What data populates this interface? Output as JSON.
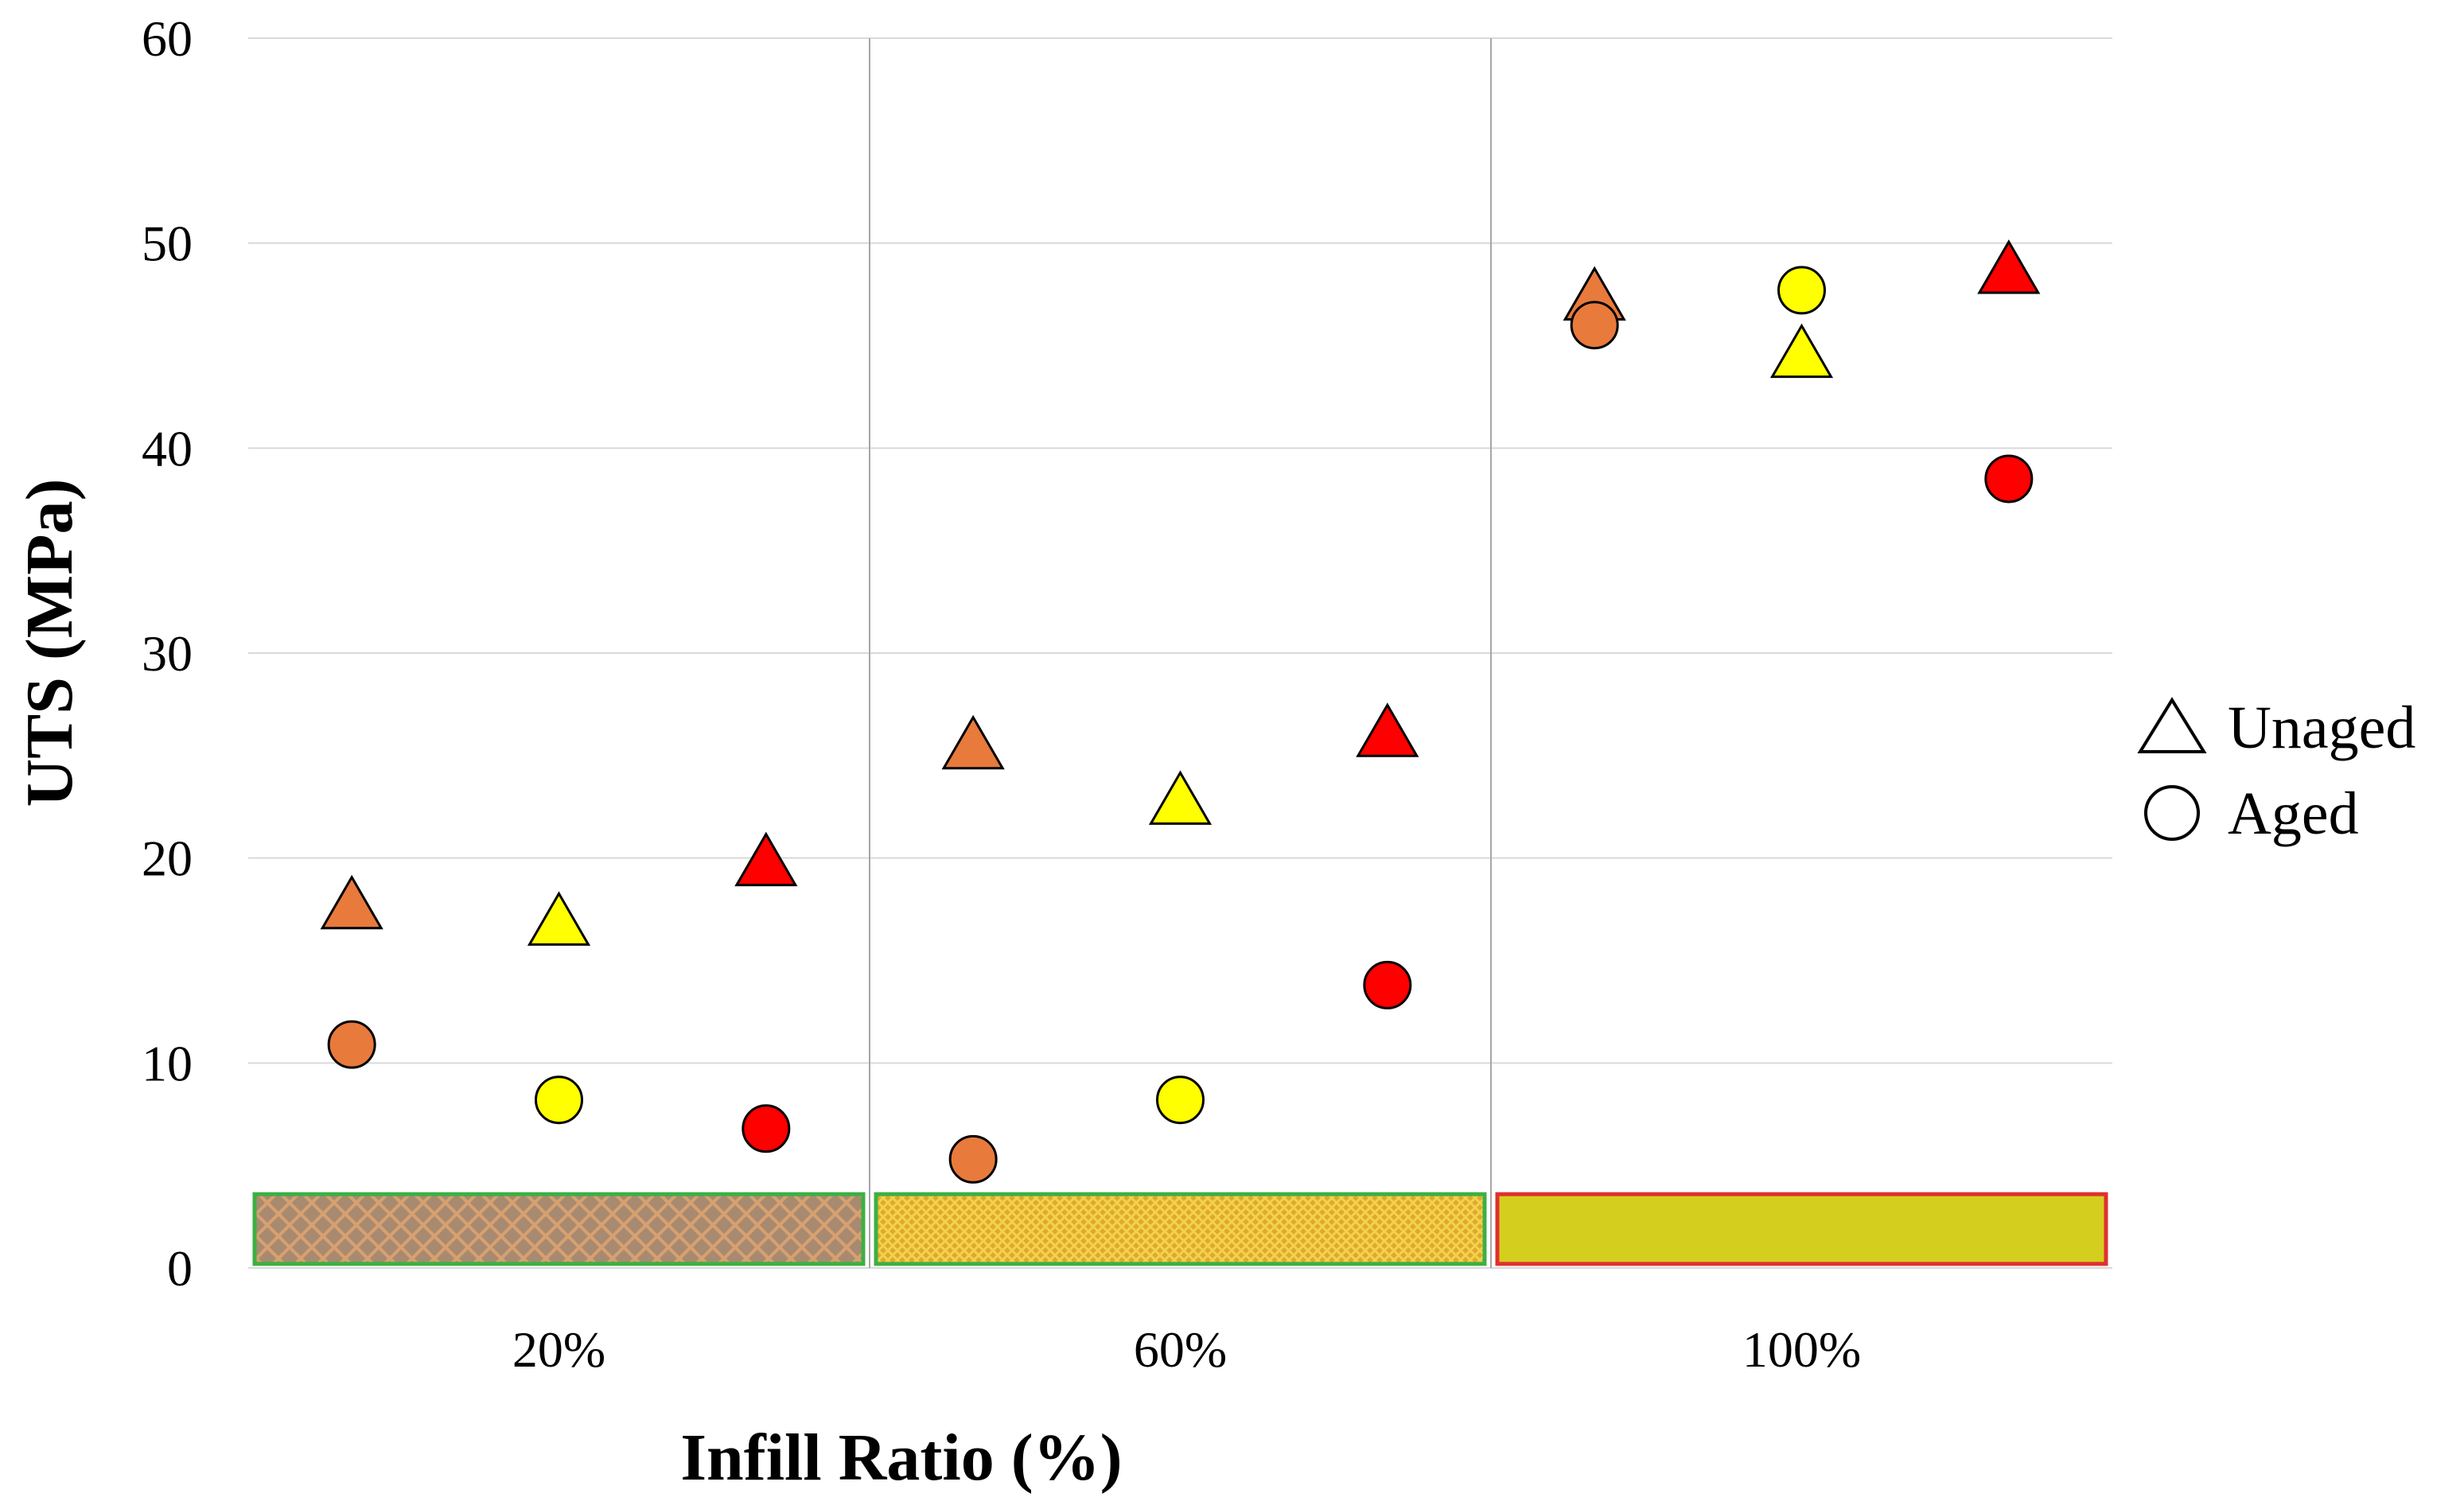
{
  "chart_data": {
    "type": "scatter",
    "title": "",
    "xlabel": "Infill Ratio (%)",
    "ylabel": "UTS (MPa)",
    "ylim": [
      0,
      60
    ],
    "yticks": [
      0,
      10,
      20,
      30,
      40,
      50,
      60
    ],
    "grid": true,
    "categories": [
      "20%",
      "60%",
      "100%"
    ],
    "colors": {
      "orange": "#E87A3C",
      "yellow": "#FFFF00",
      "red": "#FF0000"
    },
    "series": [
      {
        "name": "orange-unaged",
        "marker": "triangle",
        "color": "#E87A3C",
        "values": [
          17.7,
          25.5,
          47.4
        ]
      },
      {
        "name": "orange-aged",
        "marker": "circle",
        "color": "#E87A3C",
        "values": [
          10.9,
          5.3,
          46.0
        ]
      },
      {
        "name": "yellow-unaged",
        "marker": "triangle",
        "color": "#FFFF00",
        "values": [
          16.9,
          22.8,
          44.6
        ]
      },
      {
        "name": "yellow-aged",
        "marker": "circle",
        "color": "#FFFF00",
        "values": [
          8.2,
          8.2,
          47.7
        ]
      },
      {
        "name": "red-unaged",
        "marker": "triangle",
        "color": "#FF0000",
        "values": [
          19.8,
          26.1,
          48.7
        ]
      },
      {
        "name": "red-aged",
        "marker": "circle",
        "color": "#FF0000",
        "values": [
          6.8,
          13.8,
          38.5
        ]
      }
    ],
    "legend": {
      "position": "right",
      "entries": [
        {
          "label": "Unaged",
          "marker": "triangle"
        },
        {
          "label": "Aged",
          "marker": "circle"
        }
      ]
    },
    "infill_swatches": [
      {
        "category": "20%",
        "pattern": "crosshatch",
        "base_color": "#B0906C",
        "line_color": "#D9A06A",
        "border_color": "#3CB043"
      },
      {
        "category": "60%",
        "pattern": "dense-mesh",
        "base_color": "#E0B020",
        "line_color": "#F0C840",
        "border_color": "#3CB043"
      },
      {
        "category": "100%",
        "pattern": "solid",
        "base_color": "#D4CF1E",
        "line_color": "#D4CF1E",
        "border_color": "#E03030"
      }
    ]
  }
}
